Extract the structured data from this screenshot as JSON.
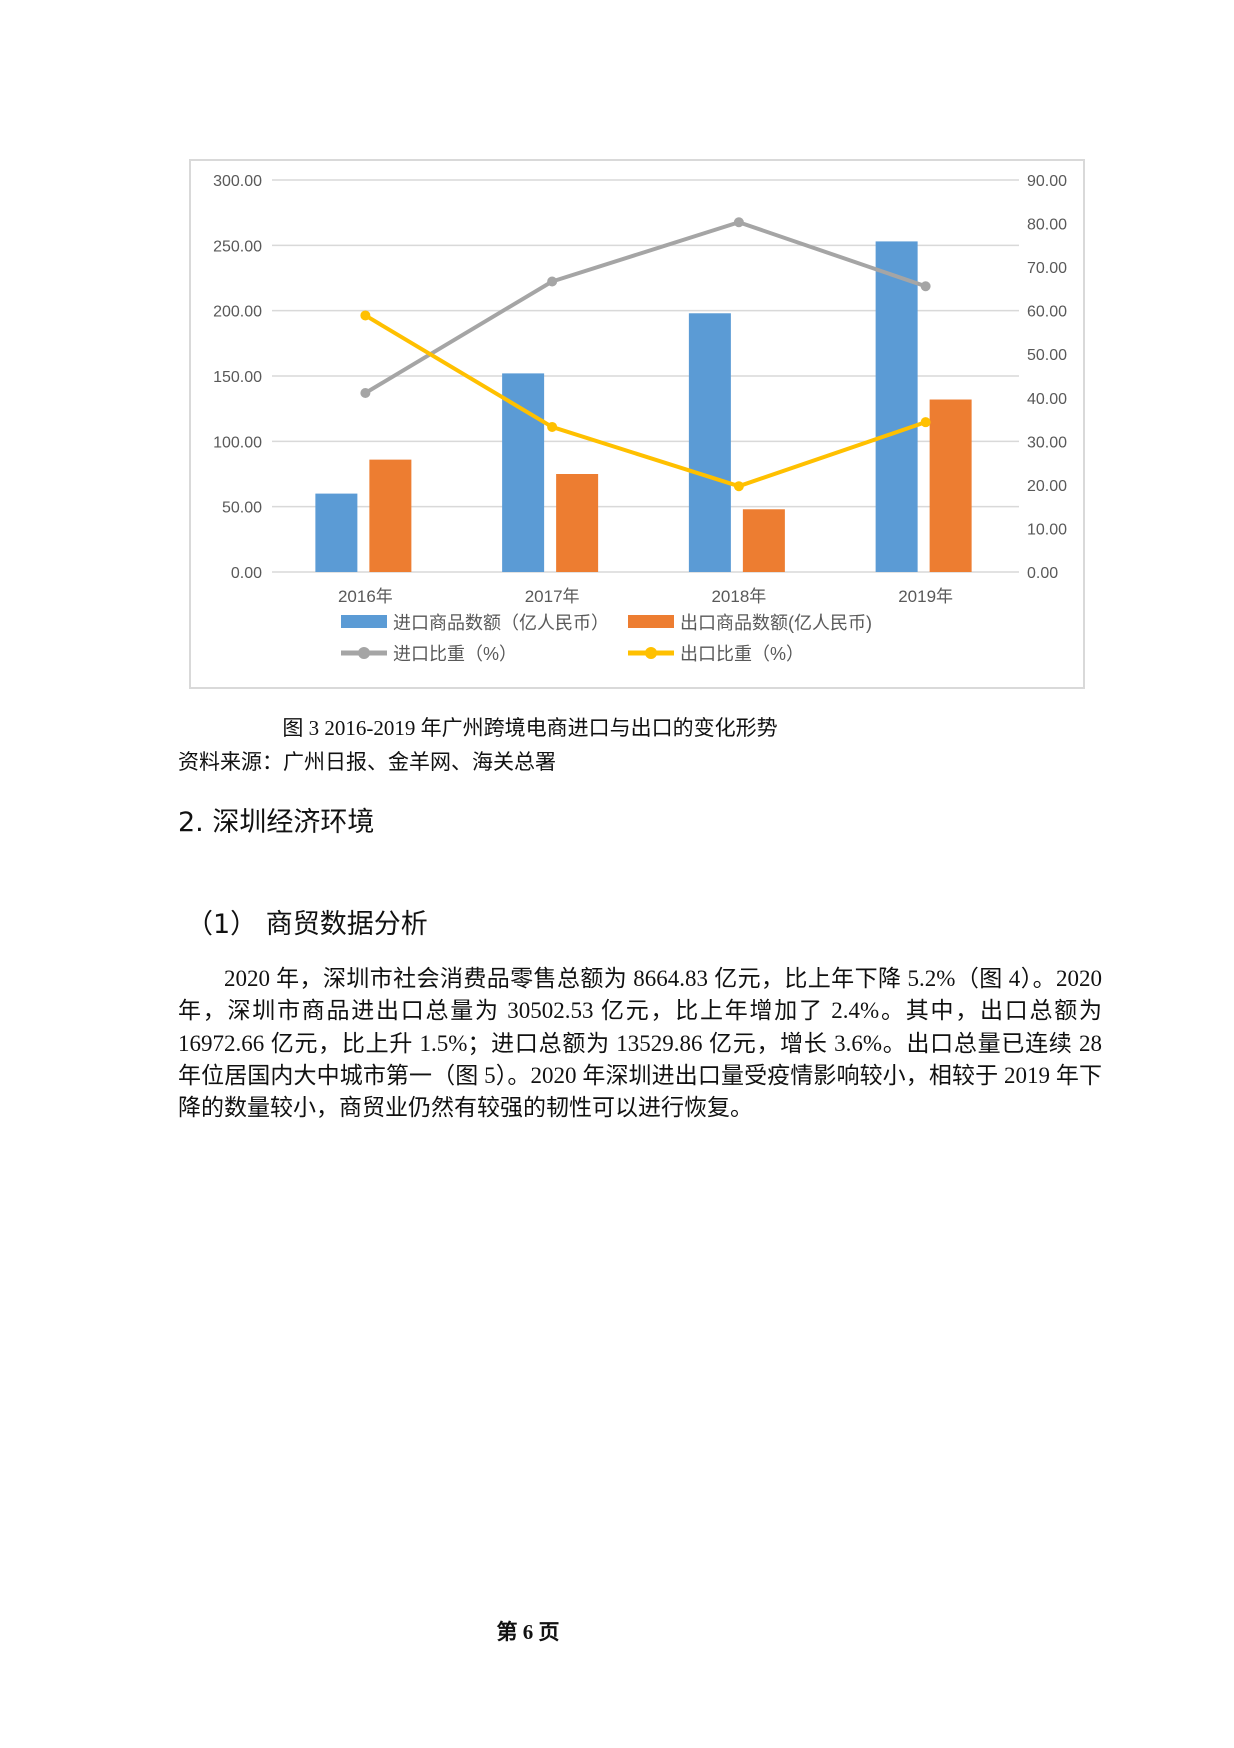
{
  "chart_data": {
    "type": "bar+line",
    "categories": [
      "2016年",
      "2017年",
      "2018年",
      "2019年"
    ],
    "series": [
      {
        "name": "进口商品数额（亿人民币）",
        "type": "bar",
        "axis": "left",
        "color": "#5b9bd5",
        "values": [
          60,
          152,
          198,
          253
        ]
      },
      {
        "name": "出口商品数额(亿人民币)",
        "type": "bar",
        "axis": "left",
        "color": "#ed7d31",
        "values": [
          86,
          75,
          48,
          132
        ]
      },
      {
        "name": "进口比重（%）",
        "type": "line",
        "axis": "right",
        "color": "#a5a5a5",
        "values": [
          41.1,
          66.7,
          80.3,
          65.6
        ]
      },
      {
        "name": "出口比重（%）",
        "type": "line",
        "axis": "right",
        "color": "#ffc000",
        "values": [
          58.9,
          33.3,
          19.7,
          34.4
        ]
      }
    ],
    "ylim_left": [
      0,
      300
    ],
    "yticks_left": [
      "0.00",
      "50.00",
      "100.00",
      "150.00",
      "200.00",
      "250.00",
      "300.00"
    ],
    "ylim_right": [
      0,
      90
    ],
    "yticks_right": [
      "0.00",
      "10.00",
      "20.00",
      "30.00",
      "40.00",
      "50.00",
      "60.00",
      "70.00",
      "80.00",
      "90.00"
    ],
    "grid": true,
    "legend_position": "bottom"
  },
  "caption": "图 3 2016-2019 年广州跨境电商进口与出口的变化形势",
  "source": "资料来源：广州日报、金羊网、海关总署",
  "heading2": "2.  深圳经济环境",
  "heading3": "（1）  商贸数据分析",
  "paragraph": "2020 年，深圳市社会消费品零售总额为 8664.83 亿元，比上年下降 5.2%（图 4）。2020 年，深圳市商品进出口总量为 30502.53 亿元，比上年增加了 2.4%。其中，出口总额为 16972.66 亿元，比上升 1.5%；进口总额为 13529.86 亿元，增长 3.6%。出口总量已连续 28 年位居国内大中城市第一（图 5）。2020 年深圳进出口量受疫情影响较小，相较于 2019 年下降的数量较小，商贸业仍然有较强的韧性可以进行恢复。",
  "footer": "第 6 页"
}
